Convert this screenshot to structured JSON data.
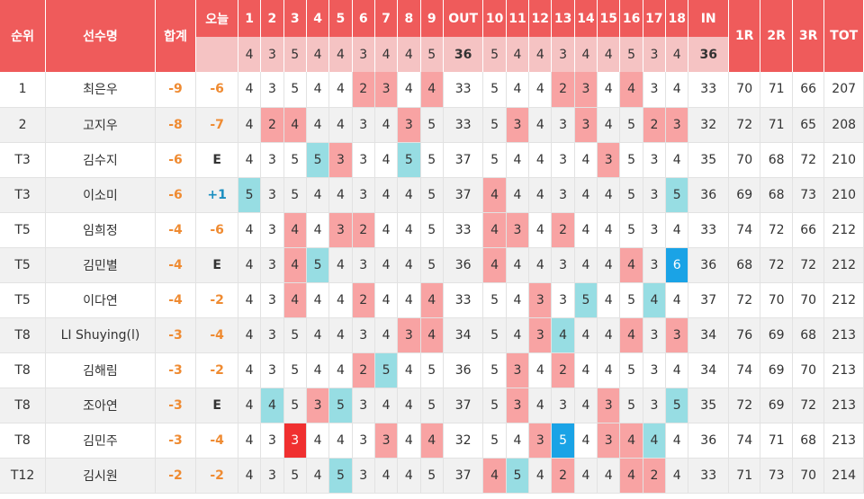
{
  "header": {
    "rank": "순위",
    "player": "선수명",
    "total": "합계",
    "today": "오늘",
    "holes": [
      "1",
      "2",
      "3",
      "4",
      "5",
      "6",
      "7",
      "8",
      "9",
      "OUT",
      "10",
      "11",
      "12",
      "13",
      "14",
      "15",
      "16",
      "17",
      "18",
      "IN"
    ],
    "r1": "1R",
    "r2": "2R",
    "r3": "3R",
    "tot": "TOT"
  },
  "par": [
    "4",
    "3",
    "5",
    "4",
    "4",
    "3",
    "4",
    "4",
    "5",
    "36",
    "5",
    "4",
    "4",
    "3",
    "4",
    "4",
    "5",
    "3",
    "4",
    "36"
  ],
  "colors": {
    "header_bg": "#ef5b5b",
    "par_row_bg": "#f5c3c3",
    "birdie": "#f8a3a3",
    "eagle": "#f03030",
    "bogey": "#97dde3",
    "double_bogey": "#1aa3e6",
    "total_text": "#ef8b32",
    "over_par_text": "#1a8ec0"
  },
  "players": [
    {
      "rank": "1",
      "name": "최은우",
      "total": "-9",
      "today": "-6",
      "scores": [
        "4",
        "3",
        "5",
        "4",
        "4",
        "2",
        "3",
        "4",
        "4",
        "33",
        "5",
        "4",
        "4",
        "2",
        "3",
        "4",
        "4",
        "3",
        "4",
        "33"
      ],
      "r1": "70",
      "r2": "71",
      "r3": "66",
      "tot": "207"
    },
    {
      "rank": "2",
      "name": "고지우",
      "total": "-8",
      "today": "-7",
      "scores": [
        "4",
        "2",
        "4",
        "4",
        "4",
        "3",
        "4",
        "3",
        "5",
        "33",
        "5",
        "3",
        "4",
        "3",
        "3",
        "4",
        "5",
        "2",
        "3",
        "32"
      ],
      "r1": "72",
      "r2": "71",
      "r3": "65",
      "tot": "208"
    },
    {
      "rank": "T3",
      "name": "김수지",
      "total": "-6",
      "today": "E",
      "scores": [
        "4",
        "3",
        "5",
        "5",
        "3",
        "3",
        "4",
        "5",
        "5",
        "37",
        "5",
        "4",
        "4",
        "3",
        "4",
        "3",
        "5",
        "3",
        "4",
        "35"
      ],
      "r1": "70",
      "r2": "68",
      "r3": "72",
      "tot": "210"
    },
    {
      "rank": "T3",
      "name": "이소미",
      "total": "-6",
      "today": "+1",
      "scores": [
        "5",
        "3",
        "5",
        "4",
        "4",
        "3",
        "4",
        "4",
        "5",
        "37",
        "4",
        "4",
        "4",
        "3",
        "4",
        "4",
        "5",
        "3",
        "5",
        "36"
      ],
      "r1": "69",
      "r2": "68",
      "r3": "73",
      "tot": "210"
    },
    {
      "rank": "T5",
      "name": "임희정",
      "total": "-4",
      "today": "-6",
      "scores": [
        "4",
        "3",
        "4",
        "4",
        "3",
        "2",
        "4",
        "4",
        "5",
        "33",
        "4",
        "3",
        "4",
        "2",
        "4",
        "4",
        "5",
        "3",
        "4",
        "33"
      ],
      "r1": "74",
      "r2": "72",
      "r3": "66",
      "tot": "212"
    },
    {
      "rank": "T5",
      "name": "김민별",
      "total": "-4",
      "today": "E",
      "scores": [
        "4",
        "3",
        "4",
        "5",
        "4",
        "3",
        "4",
        "4",
        "5",
        "36",
        "4",
        "4",
        "4",
        "3",
        "4",
        "4",
        "4",
        "3",
        "6",
        "36"
      ],
      "r1": "68",
      "r2": "72",
      "r3": "72",
      "tot": "212"
    },
    {
      "rank": "T5",
      "name": "이다연",
      "total": "-4",
      "today": "-2",
      "scores": [
        "4",
        "3",
        "4",
        "4",
        "4",
        "2",
        "4",
        "4",
        "4",
        "33",
        "5",
        "4",
        "3",
        "3",
        "5",
        "4",
        "5",
        "4",
        "4",
        "37"
      ],
      "r1": "72",
      "r2": "70",
      "r3": "70",
      "tot": "212"
    },
    {
      "rank": "T8",
      "name": "LI Shuying(l)",
      "total": "-3",
      "today": "-4",
      "scores": [
        "4",
        "3",
        "5",
        "4",
        "4",
        "3",
        "4",
        "3",
        "4",
        "34",
        "5",
        "4",
        "3",
        "4",
        "4",
        "4",
        "4",
        "3",
        "3",
        "34"
      ],
      "r1": "76",
      "r2": "69",
      "r3": "68",
      "tot": "213"
    },
    {
      "rank": "T8",
      "name": "김해림",
      "total": "-3",
      "today": "-2",
      "scores": [
        "4",
        "3",
        "5",
        "4",
        "4",
        "2",
        "5",
        "4",
        "5",
        "36",
        "5",
        "3",
        "4",
        "2",
        "4",
        "4",
        "5",
        "3",
        "4",
        "34"
      ],
      "r1": "74",
      "r2": "69",
      "r3": "70",
      "tot": "213"
    },
    {
      "rank": "T8",
      "name": "조아연",
      "total": "-3",
      "today": "E",
      "scores": [
        "4",
        "4",
        "5",
        "3",
        "5",
        "3",
        "4",
        "4",
        "5",
        "37",
        "5",
        "3",
        "4",
        "3",
        "4",
        "3",
        "5",
        "3",
        "5",
        "35"
      ],
      "r1": "72",
      "r2": "69",
      "r3": "72",
      "tot": "213"
    },
    {
      "rank": "T8",
      "name": "김민주",
      "total": "-3",
      "today": "-4",
      "scores": [
        "4",
        "3",
        "3",
        "4",
        "4",
        "3",
        "3",
        "4",
        "4",
        "32",
        "5",
        "4",
        "3",
        "5",
        "4",
        "3",
        "4",
        "4",
        "4",
        "36"
      ],
      "r1": "74",
      "r2": "71",
      "r3": "68",
      "tot": "213"
    },
    {
      "rank": "T12",
      "name": "김시원",
      "total": "-2",
      "today": "-2",
      "scores": [
        "4",
        "3",
        "5",
        "4",
        "5",
        "3",
        "4",
        "4",
        "5",
        "37",
        "4",
        "5",
        "4",
        "2",
        "4",
        "4",
        "4",
        "2",
        "4",
        "33"
      ],
      "r1": "71",
      "r2": "73",
      "r3": "70",
      "tot": "214"
    }
  ]
}
